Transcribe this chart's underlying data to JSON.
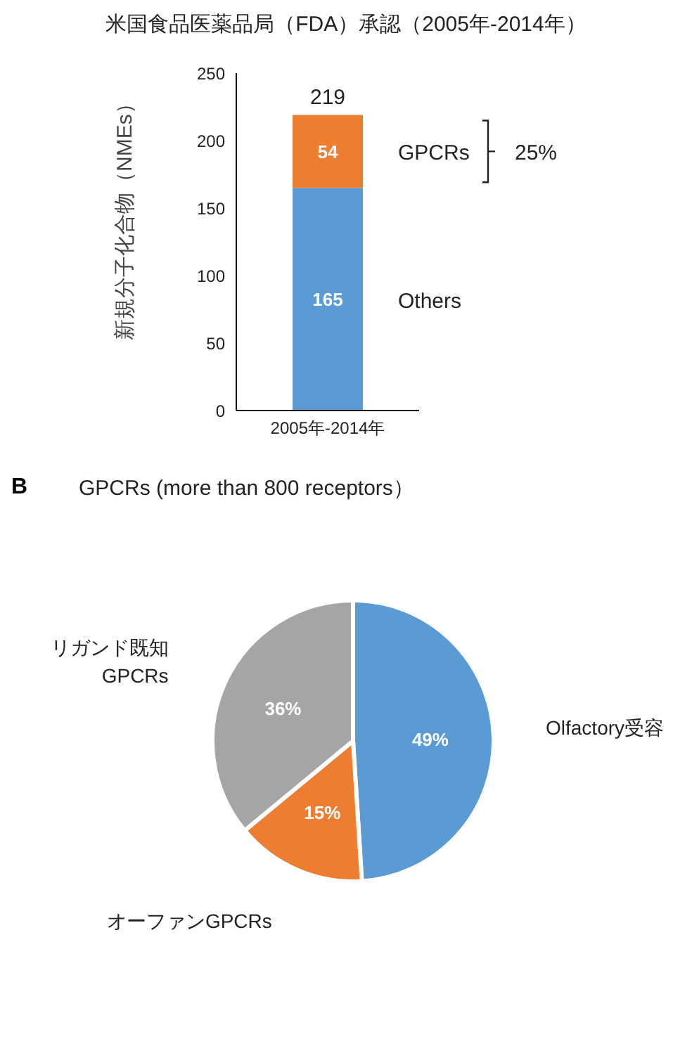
{
  "chart_data": [
    {
      "type": "bar",
      "title": "米国食品医薬品局（FDA）承認（2005年-2014年）",
      "ylabel": "新規分子化合物（NMEs）",
      "categories": [
        "2005年-2014年"
      ],
      "stacked": true,
      "series": [
        {
          "name": "Others",
          "color": "#5b9bd5",
          "values": [
            165
          ]
        },
        {
          "name": "GPCRs",
          "color": "#ed7d31",
          "values": [
            54
          ]
        }
      ],
      "totals": [
        "219"
      ],
      "data_labels": true,
      "ylim": [
        0,
        250
      ],
      "yticks": [
        0,
        50,
        100,
        150,
        200,
        250
      ],
      "grid": false,
      "legend": false,
      "annotations": [
        "25%"
      ]
    },
    {
      "type": "pie",
      "title": "GPCRs (more than 800 receptors）",
      "categories": [
        "Olfactory受容",
        "オーファンGPCRs",
        "リガンド既知 GPCRs"
      ],
      "values": [
        49,
        15,
        36
      ],
      "colors": [
        "#5b9bd5",
        "#ed7d31",
        "#a5a5a5"
      ],
      "value_labels": [
        "49%",
        "15%",
        "36%"
      ],
      "legend": false,
      "annotations": [
        "B"
      ]
    }
  ]
}
